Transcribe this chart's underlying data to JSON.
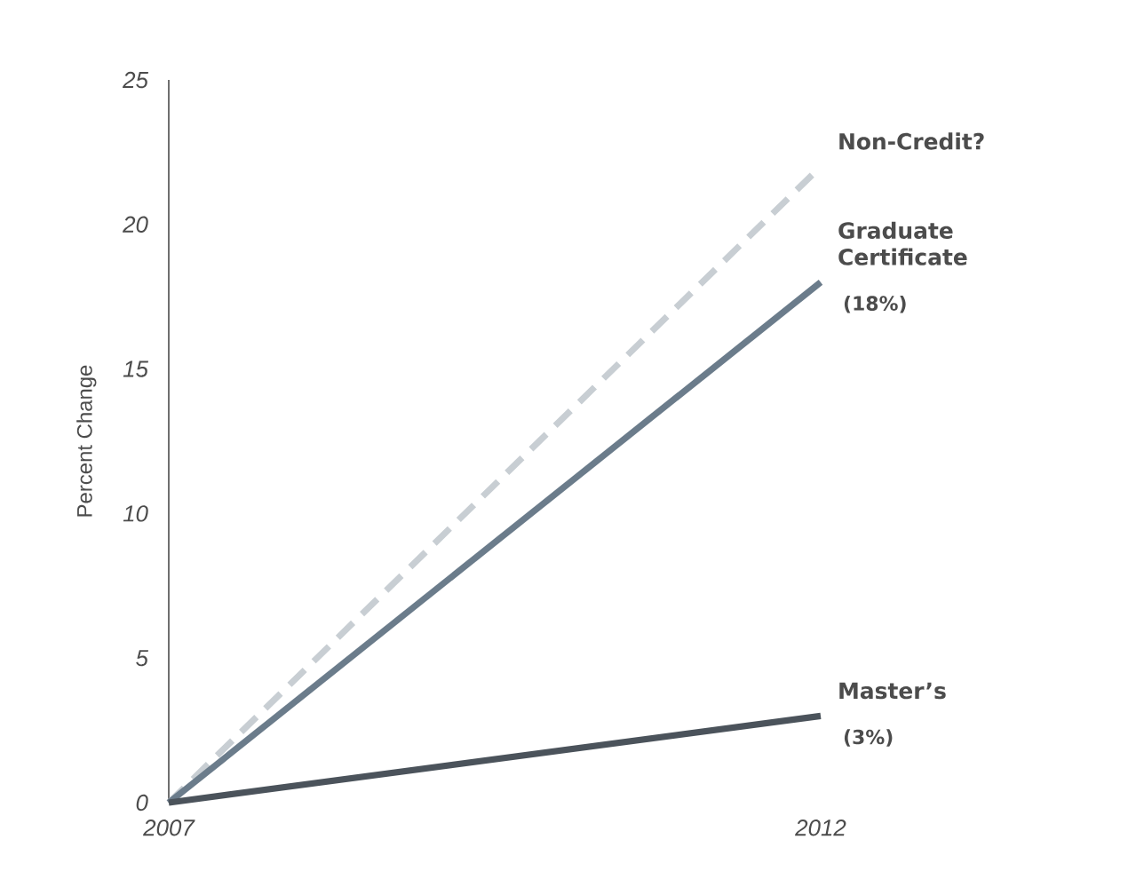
{
  "chart_data": {
    "type": "line",
    "ylabel": "Percent Change",
    "x": [
      2007,
      2012
    ],
    "xlim": [
      2007,
      2012
    ],
    "xticks": [
      2007,
      2012
    ],
    "ylim": [
      0,
      25
    ],
    "yticks": [
      0,
      5,
      10,
      15,
      20,
      25
    ],
    "grid": false,
    "legend": false,
    "marker": "none",
    "series": [
      {
        "name": "Non-Credit?",
        "color": "#c8ced3",
        "line_style": "dashed",
        "values": [
          0,
          22
        ]
      },
      {
        "name": "Graduate Certificate",
        "color": "#6b7c8b",
        "line_style": "solid",
        "values": [
          0,
          18
        ],
        "value_labels": [
          null,
          "(18%)"
        ]
      },
      {
        "name": "Master’s",
        "color": "#4b535b",
        "line_style": "solid",
        "values": [
          0,
          3
        ],
        "value_labels": [
          null,
          "(3%)"
        ]
      }
    ]
  }
}
